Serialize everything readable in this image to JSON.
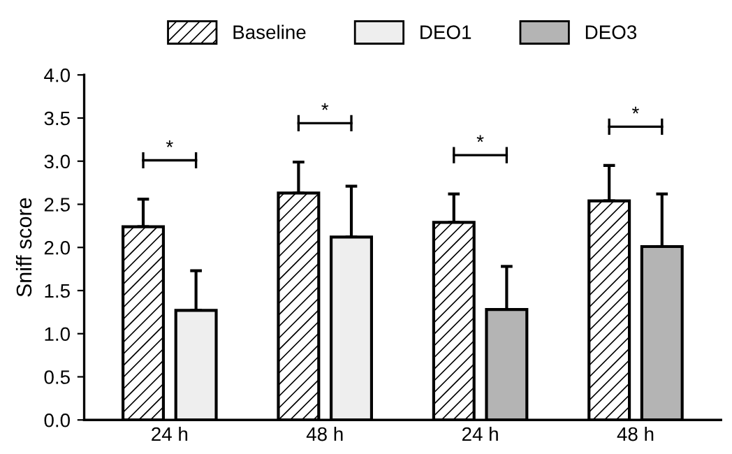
{
  "chart_data": {
    "type": "bar",
    "ylabel": "Sniff score",
    "categories": [
      "24 h",
      "48 h",
      "24 h",
      "48 h"
    ],
    "series": [
      {
        "name": "Baseline",
        "color": "#ffffff",
        "values": [
          2.24,
          2.63,
          2.29,
          2.54
        ],
        "errors": [
          [
            2.24,
            2.56
          ],
          [
            2.63,
            2.99
          ],
          [
            2.29,
            2.62
          ],
          [
            2.54,
            2.95
          ]
        ]
      },
      {
        "name": "DEO1",
        "color": "#eeeeee",
        "values": [
          1.27,
          2.12,
          null,
          null
        ],
        "errors": [
          [
            1.27,
            1.73
          ],
          [
            2.12,
            2.71
          ],
          null,
          null
        ]
      },
      {
        "name": "DEO3",
        "color": "#b4b4b4",
        "values": [
          null,
          null,
          1.28,
          2.01
        ],
        "errors": [
          null,
          null,
          [
            1.28,
            1.78
          ],
          [
            2.01,
            2.62
          ]
        ]
      }
    ],
    "annotations": [
      "*",
      "*",
      "*",
      "*"
    ],
    "ylim": [
      0,
      4
    ],
    "yticks": [
      {
        "value": 0,
        "label": "0.0"
      },
      {
        "value": 0.5,
        "label": "0.5"
      },
      {
        "value": 1,
        "label": "1.0"
      },
      {
        "value": 1.5,
        "label": "1.5"
      },
      {
        "value": 2,
        "label": "2.0"
      },
      {
        "value": 2.5,
        "label": "2.5"
      },
      {
        "value": 3,
        "label": "3.0"
      },
      {
        "value": 3.5,
        "label": "3.5"
      },
      {
        "value": 4,
        "label": "4.0"
      }
    ],
    "grid": false,
    "legend": "top"
  }
}
